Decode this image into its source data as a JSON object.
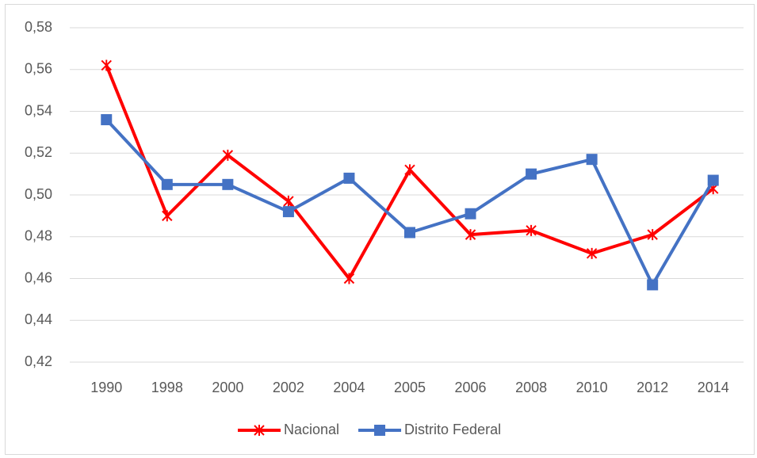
{
  "chart_data": {
    "type": "line",
    "categories": [
      "1990",
      "1998",
      "2000",
      "2002",
      "2004",
      "2005",
      "2006",
      "2008",
      "2010",
      "2012",
      "2014"
    ],
    "series": [
      {
        "name": "Nacional",
        "color": "#ff0000",
        "marker": "star",
        "values": [
          0.562,
          0.49,
          0.519,
          0.497,
          0.46,
          0.512,
          0.481,
          0.483,
          0.472,
          0.481,
          0.503
        ]
      },
      {
        "name": "Distrito Federal",
        "color": "#4472c4",
        "marker": "square",
        "values": [
          0.536,
          0.505,
          0.505,
          0.492,
          0.508,
          0.482,
          0.491,
          0.51,
          0.517,
          0.457,
          0.507
        ]
      }
    ],
    "ylim": [
      0.42,
      0.58
    ],
    "yticks": [
      {
        "value": 0.42,
        "label": "0,42"
      },
      {
        "value": 0.44,
        "label": "0,44"
      },
      {
        "value": 0.46,
        "label": "0,46"
      },
      {
        "value": 0.48,
        "label": "0,48"
      },
      {
        "value": 0.5,
        "label": "0,50"
      },
      {
        "value": 0.52,
        "label": "0,52"
      },
      {
        "value": 0.54,
        "label": "0,54"
      },
      {
        "value": 0.56,
        "label": "0,56"
      },
      {
        "value": 0.58,
        "label": "0,58"
      }
    ],
    "grid": true,
    "legend": "bottom"
  }
}
